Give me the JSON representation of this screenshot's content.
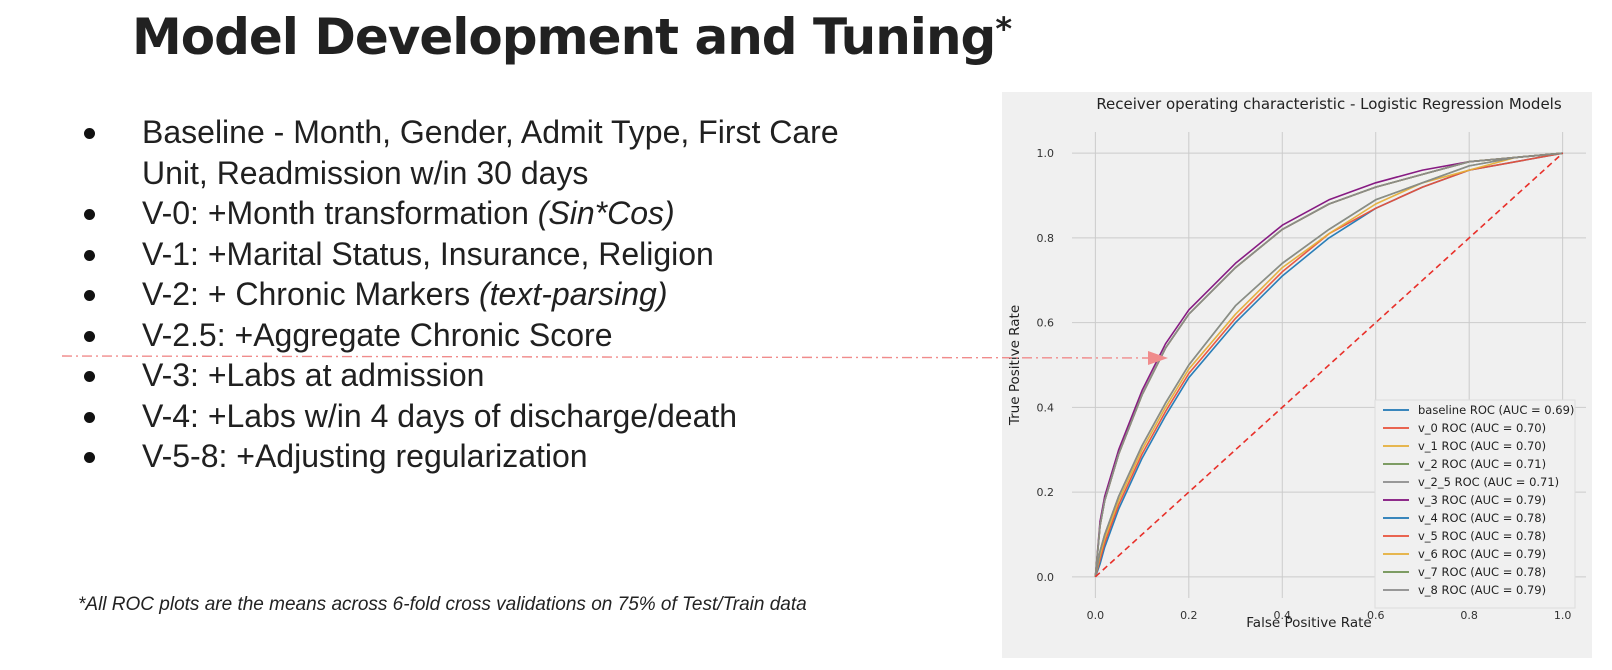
{
  "slide": {
    "title": "Model Development and Tuning",
    "title_mark": "*",
    "bullets": [
      {
        "text": "Baseline - Month, Gender, Admit Type, First Care",
        "cont": "Unit, Readmission w/in 30 days"
      },
      {
        "text": "V-0:  +Month transformation ",
        "italic": "(Sin*Cos)"
      },
      {
        "text": "V-1:  +Marital Status, Insurance, Religion"
      },
      {
        "text": "V-2:  + Chronic Markers ",
        "italic": "(text-parsing)"
      },
      {
        "text": "V-2.5: +Aggregate Chronic Score"
      },
      {
        "text": "V-3: +Labs at admission"
      },
      {
        "text": "V-4: +Labs w/in 4 days of discharge/death"
      },
      {
        "text": "V-5-8: +Adjusting regularization"
      }
    ],
    "footnote": "*All ROC plots are the means across 6-fold cross validations on 75% of Test/Train data",
    "arrow_color": "#f08c8c"
  },
  "chart_data": {
    "type": "line",
    "title": "Receiver operating characteristic - Logistic Regression Models",
    "xlabel": "False Positive Rate",
    "ylabel": "True Positive Rate",
    "xlim": [
      -0.05,
      1.05
    ],
    "ylim": [
      -0.05,
      1.05
    ],
    "xticks": [
      "0.0",
      "0.2",
      "0.4",
      "0.6",
      "0.8",
      "1.0"
    ],
    "yticks": [
      "0.0",
      "0.2",
      "0.4",
      "0.6",
      "0.8",
      "1.0"
    ],
    "grid": true,
    "legend": "lower-right",
    "x": [
      0,
      0.01,
      0.02,
      0.05,
      0.1,
      0.15,
      0.2,
      0.3,
      0.4,
      0.5,
      0.6,
      0.7,
      0.8,
      0.9,
      1.0
    ],
    "series": [
      {
        "name": "baseline ROC (AUC = 0.69)",
        "color": "#1f77b4",
        "values": [
          0,
          0.03,
          0.07,
          0.16,
          0.28,
          0.38,
          0.47,
          0.6,
          0.71,
          0.8,
          0.87,
          0.92,
          0.96,
          0.98,
          1.0
        ]
      },
      {
        "name": "v_0 ROC (AUC = 0.70)",
        "color": "#e8503a",
        "values": [
          0,
          0.04,
          0.08,
          0.17,
          0.29,
          0.39,
          0.48,
          0.61,
          0.72,
          0.81,
          0.87,
          0.92,
          0.96,
          0.98,
          1.0
        ]
      },
      {
        "name": "v_1 ROC (AUC = 0.70)",
        "color": "#e5ae38",
        "values": [
          0,
          0.05,
          0.09,
          0.18,
          0.3,
          0.4,
          0.49,
          0.62,
          0.73,
          0.81,
          0.88,
          0.93,
          0.96,
          0.99,
          1.0
        ]
      },
      {
        "name": "v_2 ROC (AUC = 0.71)",
        "color": "#6d904f",
        "values": [
          0,
          0.06,
          0.1,
          0.19,
          0.31,
          0.41,
          0.5,
          0.64,
          0.74,
          0.82,
          0.89,
          0.93,
          0.97,
          0.99,
          1.0
        ]
      },
      {
        "name": "v_2_5 ROC (AUC = 0.71)",
        "color": "#8b8b8b",
        "values": [
          0,
          0.06,
          0.1,
          0.19,
          0.31,
          0.41,
          0.5,
          0.64,
          0.74,
          0.82,
          0.89,
          0.93,
          0.97,
          0.99,
          1.0
        ]
      },
      {
        "name": "v_3 ROC (AUC = 0.79)",
        "color": "#810f7c",
        "values": [
          0,
          0.13,
          0.19,
          0.3,
          0.44,
          0.55,
          0.63,
          0.74,
          0.83,
          0.89,
          0.93,
          0.96,
          0.98,
          0.99,
          1.0
        ]
      },
      {
        "name": "v_4 ROC (AUC = 0.78)",
        "color": "#1f77b4",
        "values": [
          0,
          0.12,
          0.18,
          0.29,
          0.43,
          0.54,
          0.62,
          0.73,
          0.82,
          0.88,
          0.92,
          0.95,
          0.98,
          0.99,
          1.0
        ]
      },
      {
        "name": "v_5 ROC (AUC = 0.78)",
        "color": "#e8503a",
        "values": [
          0,
          0.12,
          0.18,
          0.29,
          0.43,
          0.54,
          0.62,
          0.73,
          0.82,
          0.88,
          0.92,
          0.95,
          0.98,
          0.99,
          1.0
        ]
      },
      {
        "name": "v_6 ROC (AUC = 0.79)",
        "color": "#e5ae38",
        "values": [
          0,
          0.12,
          0.18,
          0.29,
          0.43,
          0.54,
          0.62,
          0.73,
          0.82,
          0.88,
          0.92,
          0.95,
          0.98,
          0.99,
          1.0
        ]
      },
      {
        "name": "v_7 ROC (AUC = 0.78)",
        "color": "#6d904f",
        "values": [
          0,
          0.12,
          0.18,
          0.29,
          0.43,
          0.54,
          0.62,
          0.73,
          0.82,
          0.88,
          0.92,
          0.95,
          0.98,
          0.99,
          1.0
        ]
      },
      {
        "name": "v_8 ROC (AUC = 0.79)",
        "color": "#8b8b8b",
        "values": [
          0,
          0.12,
          0.18,
          0.29,
          0.43,
          0.54,
          0.62,
          0.73,
          0.82,
          0.88,
          0.92,
          0.95,
          0.98,
          0.99,
          1.0
        ]
      }
    ],
    "reference_line": {
      "x": [
        0,
        1
      ],
      "y": [
        0,
        1
      ],
      "color": "#e8302a",
      "style": "dashed"
    }
  }
}
